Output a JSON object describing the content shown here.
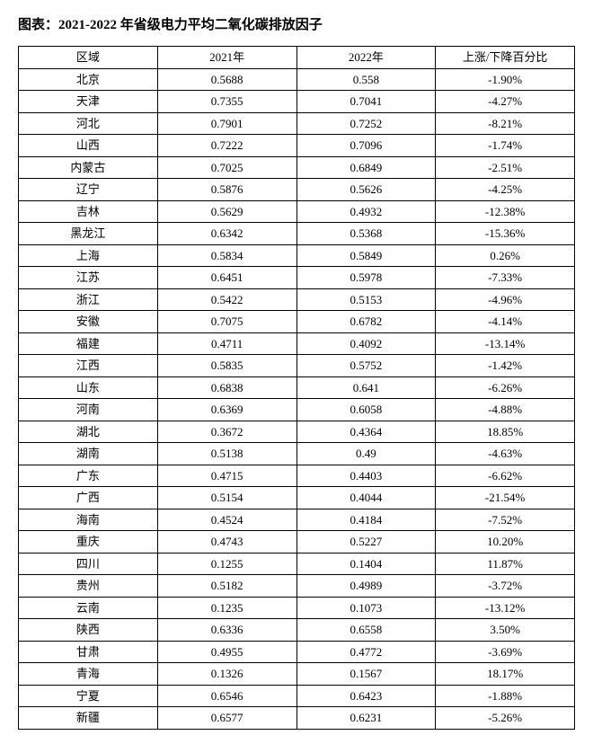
{
  "title": "图表：2021-2022 年省级电力平均二氧化碳排放因子",
  "table": {
    "type": "table",
    "columns": [
      "区域",
      "2021年",
      "2022年",
      "上涨/下降百分比"
    ],
    "column_widths": [
      "25%",
      "25%",
      "25%",
      "25%"
    ],
    "border_color": "#000000",
    "background_color": "#ffffff",
    "text_color": "#000000",
    "fontsize": 13,
    "header_fontsize": 13,
    "header_fontweight": "normal",
    "cell_align": "center",
    "rows": [
      [
        "北京",
        "0.5688",
        "0.558",
        "-1.90%"
      ],
      [
        "天津",
        "0.7355",
        "0.7041",
        "-4.27%"
      ],
      [
        "河北",
        "0.7901",
        "0.7252",
        "-8.21%"
      ],
      [
        "山西",
        "0.7222",
        "0.7096",
        "-1.74%"
      ],
      [
        "内蒙古",
        "0.7025",
        "0.6849",
        "-2.51%"
      ],
      [
        "辽宁",
        "0.5876",
        "0.5626",
        "-4.25%"
      ],
      [
        "吉林",
        "0.5629",
        "0.4932",
        "-12.38%"
      ],
      [
        "黑龙江",
        "0.6342",
        "0.5368",
        "-15.36%"
      ],
      [
        "上海",
        "0.5834",
        "0.5849",
        "0.26%"
      ],
      [
        "江苏",
        "0.6451",
        "0.5978",
        "-7.33%"
      ],
      [
        "浙江",
        "0.5422",
        "0.5153",
        "-4.96%"
      ],
      [
        "安徽",
        "0.7075",
        "0.6782",
        "-4.14%"
      ],
      [
        "福建",
        "0.4711",
        "0.4092",
        "-13.14%"
      ],
      [
        "江西",
        "0.5835",
        "0.5752",
        "-1.42%"
      ],
      [
        "山东",
        "0.6838",
        "0.641",
        "-6.26%"
      ],
      [
        "河南",
        "0.6369",
        "0.6058",
        "-4.88%"
      ],
      [
        "湖北",
        "0.3672",
        "0.4364",
        "18.85%"
      ],
      [
        "湖南",
        "0.5138",
        "0.49",
        "-4.63%"
      ],
      [
        "广东",
        "0.4715",
        "0.4403",
        "-6.62%"
      ],
      [
        "广西",
        "0.5154",
        "0.4044",
        "-21.54%"
      ],
      [
        "海南",
        "0.4524",
        "0.4184",
        "-7.52%"
      ],
      [
        "重庆",
        "0.4743",
        "0.5227",
        "10.20%"
      ],
      [
        "四川",
        "0.1255",
        "0.1404",
        "11.87%"
      ],
      [
        "贵州",
        "0.5182",
        "0.4989",
        "-3.72%"
      ],
      [
        "云南",
        "0.1235",
        "0.1073",
        "-13.12%"
      ],
      [
        "陕西",
        "0.6336",
        "0.6558",
        "3.50%"
      ],
      [
        "甘肃",
        "0.4955",
        "0.4772",
        "-3.69%"
      ],
      [
        "青海",
        "0.1326",
        "0.1567",
        "18.17%"
      ],
      [
        "宁夏",
        "0.6546",
        "0.6423",
        "-1.88%"
      ],
      [
        "新疆",
        "0.6577",
        "0.6231",
        "-5.26%"
      ]
    ]
  }
}
